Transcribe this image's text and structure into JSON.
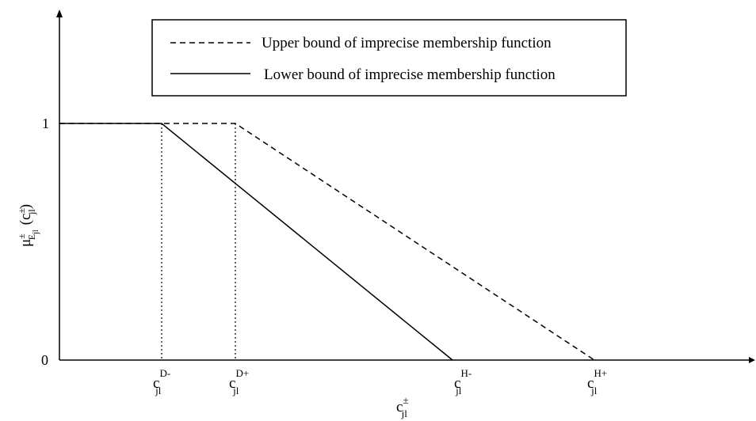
{
  "legend": {
    "upper_label": "Upper bound of imprecise membership function",
    "lower_label": "Lower bound of imprecise membership function"
  },
  "y_axis": {
    "label_main": "μ",
    "label_sup": "±",
    "label_sub": "E",
    "label_subsub": "jl",
    "label_paren_open": "(c",
    "label_paren_sup": "±",
    "label_paren_sub": "jl",
    "label_paren_close": ")",
    "tick_one": "1",
    "tick_zero": "0"
  },
  "x_axis": {
    "label_base": "c",
    "label_sup": "±",
    "label_sub": "jl",
    "ticks": [
      {
        "base": "c",
        "sup": "D-",
        "sub": "jl"
      },
      {
        "base": "c",
        "sup": "D+",
        "sub": "jl"
      },
      {
        "base": "c",
        "sup": "H-",
        "sub": "jl"
      },
      {
        "base": "c",
        "sup": "H+",
        "sub": "jl"
      }
    ]
  },
  "colors": {
    "line": "#000000",
    "background": "#ffffff"
  }
}
